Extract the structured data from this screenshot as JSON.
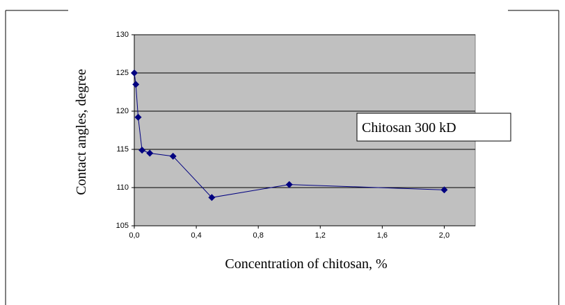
{
  "chart_data": {
    "type": "line",
    "annotation": "Chitosan 300 kD",
    "xlabel": "Concentration of chitosan, %",
    "ylabel": "Contact angles, degree",
    "x": [
      0,
      0.01,
      0.025,
      0.05,
      0.1,
      0.25,
      0.5,
      1.0,
      2.0
    ],
    "series": [
      {
        "color": "#000080",
        "values": [
          125,
          123.5,
          119.2,
          114.9,
          114.5,
          114.1,
          108.7,
          110.4,
          109.7
        ]
      }
    ],
    "xlim": [
      0,
      2.2
    ],
    "xticks": [
      {
        "value": 0,
        "label": "0,0"
      },
      {
        "value": 0.4,
        "label": "0,4"
      },
      {
        "value": 0.8,
        "label": "0,8"
      },
      {
        "value": 1.2,
        "label": "1,2"
      },
      {
        "value": 1.6,
        "label": "1,6"
      },
      {
        "value": 2.0,
        "label": "2,0"
      }
    ],
    "ylim": [
      105,
      130
    ],
    "yticks": [
      105,
      110,
      115,
      120,
      125,
      130
    ],
    "grid": true,
    "background": "#c0c0c0"
  }
}
